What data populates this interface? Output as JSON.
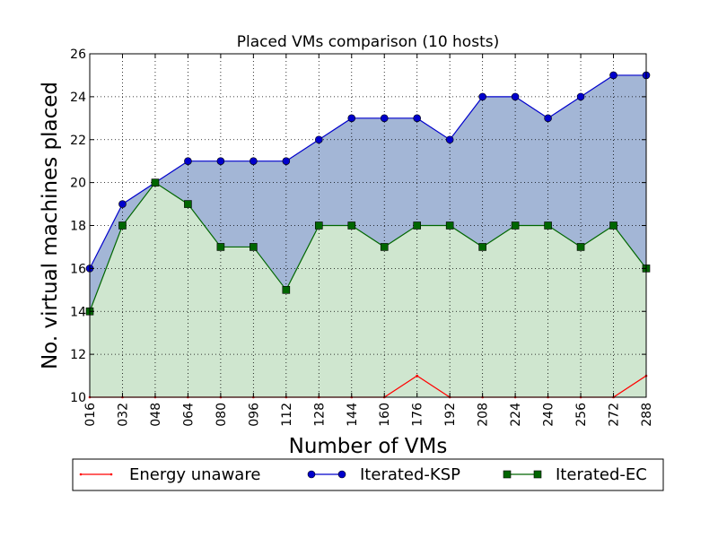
{
  "chart_data": {
    "type": "area",
    "title": "Placed VMs comparison (10 hosts)",
    "xlabel": "Number of VMs",
    "ylabel": "No. virtual machines placed",
    "categories": [
      "016",
      "032",
      "048",
      "064",
      "080",
      "096",
      "112",
      "128",
      "144",
      "160",
      "176",
      "192",
      "208",
      "224",
      "240",
      "256",
      "272",
      "288"
    ],
    "ylim": [
      10,
      26
    ],
    "yticks": [
      "10",
      "12",
      "14",
      "16",
      "18",
      "20",
      "22",
      "24",
      "26"
    ],
    "grid": true,
    "legend_position": "bottom",
    "series": [
      {
        "name": "Energy unaware",
        "color": "#ff0000",
        "marker": "dot",
        "values": [
          10,
          10,
          10,
          10,
          10,
          10,
          10,
          10,
          10,
          10,
          11,
          10,
          10,
          10,
          10,
          10,
          10,
          11
        ]
      },
      {
        "name": "Iterated-KSP",
        "color": "#0000cc",
        "fill": "#a3b6d6",
        "marker": "circle",
        "values": [
          16,
          19,
          20,
          21,
          21,
          21,
          21,
          22,
          23,
          23,
          23,
          22,
          24,
          24,
          23,
          24,
          25,
          25
        ]
      },
      {
        "name": "Iterated-EC",
        "color": "#006600",
        "fill": "#cfe6cf",
        "marker": "square",
        "values": [
          14,
          18,
          20,
          19,
          17,
          17,
          15,
          18,
          18,
          17,
          18,
          18,
          17,
          18,
          18,
          17,
          18,
          16
        ]
      }
    ]
  }
}
